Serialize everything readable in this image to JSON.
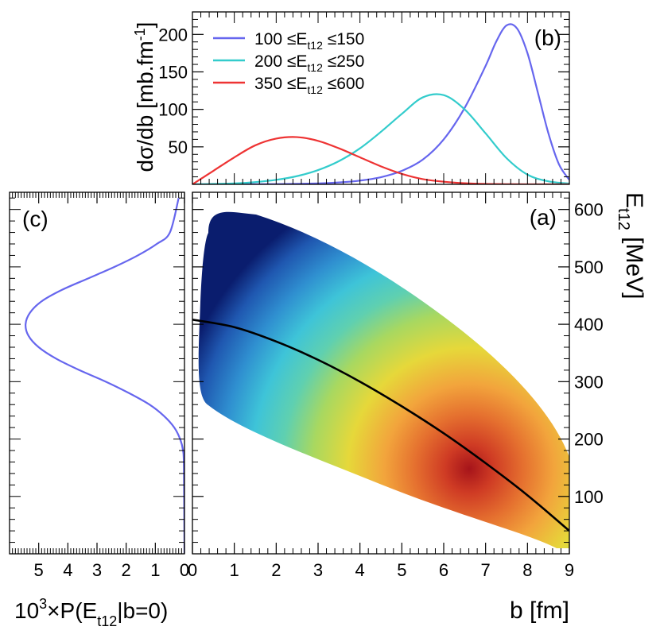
{
  "chart_data": [
    {
      "panel_label": "(b)",
      "type": "line",
      "ylabel": "dσ/db [mb.fm",
      "ylabel_sup": "-1",
      "ylabel_end": "]",
      "xlim": [
        0,
        9
      ],
      "ylim": [
        0,
        230
      ],
      "yticks": [
        "50",
        "100",
        "150",
        "200"
      ],
      "legend_placement": "top-left",
      "series": [
        {
          "name": "100  ≤E",
          "name_sub": "t12",
          "name_end": "  ≤150",
          "color": "#6666ee",
          "x": [
            0,
            1,
            2,
            3,
            3.5,
            4,
            4.5,
            5,
            5.5,
            6,
            6.5,
            7,
            7.25,
            7.5,
            7.75,
            8,
            8.25,
            8.5,
            8.75,
            9
          ],
          "y": [
            0,
            0,
            0.3,
            1.2,
            2.5,
            5,
            9.5,
            18,
            33,
            60,
            102,
            158,
            190,
            212,
            208,
            175,
            122,
            68,
            27,
            6
          ]
        },
        {
          "name": "200  ≤E",
          "name_sub": "t12",
          "name_end": "  ≤250",
          "color": "#33cccc",
          "x": [
            0,
            0.5,
            1,
            1.5,
            2,
            2.5,
            3,
            3.5,
            4,
            4.5,
            5,
            5.5,
            6,
            6.5,
            7,
            7.5,
            8,
            8.5,
            9
          ],
          "y": [
            0,
            0.5,
            1.2,
            3,
            6,
            11,
            19,
            31,
            48,
            70,
            94,
            116,
            119,
            100,
            68,
            35,
            13,
            4,
            1
          ]
        },
        {
          "name": "350  ≤E",
          "name_sub": "t12",
          "name_end": "  ≤600",
          "color": "#ee3333",
          "x": [
            0,
            0.5,
            1,
            1.5,
            2,
            2.5,
            3,
            3.5,
            4,
            4.5,
            5,
            5.5,
            6,
            6.5,
            7,
            7.5,
            8,
            9
          ],
          "y": [
            0,
            18,
            36,
            52,
            61,
            63,
            58,
            48,
            36,
            24,
            14,
            7,
            3.5,
            1.5,
            0.5,
            0.2,
            0,
            0
          ]
        }
      ]
    },
    {
      "panel_label": "(c)",
      "type": "line",
      "xlabel": "10",
      "xlabel_sup": "3",
      "xlabel_mid": "×P(E",
      "xlabel_sub": "t12",
      "xlabel_end": "|b=0)",
      "x_axis_reversed": true,
      "xlim": [
        0,
        6
      ],
      "ylim": [
        0,
        630
      ],
      "xticks": [
        "5",
        "4",
        "3",
        "2",
        "1",
        "0"
      ],
      "series": [
        {
          "color": "#6666ee",
          "x": [
            0,
            0.02,
            0.05,
            0.15,
            0.35,
            0.7,
            1.2,
            1.9,
            2.7,
            3.6,
            4.4,
            5.0,
            5.35,
            5.45,
            5.3,
            4.9,
            4.2,
            3.3,
            2.4,
            1.6,
            0.95,
            0.5,
            0.2
          ],
          "y": [
            0,
            150,
            180,
            200,
            220,
            240,
            260,
            280,
            300,
            320,
            340,
            360,
            380,
            400,
            420,
            440,
            460,
            480,
            500,
            520,
            540,
            560,
            620
          ]
        }
      ]
    },
    {
      "panel_label": "(a)",
      "type": "heatmap",
      "xlabel": "b [fm]",
      "ylabel": "E",
      "ylabel_sub": "t12",
      "ylabel_end": " [MeV]",
      "xlim": [
        0,
        9
      ],
      "ylim": [
        0,
        630
      ],
      "xticks": [
        "0",
        "1",
        "2",
        "3",
        "4",
        "5",
        "6",
        "7",
        "8",
        "9"
      ],
      "yticks": [
        "100",
        "200",
        "300",
        "400",
        "500",
        "600"
      ],
      "colorscale": [
        "#0a1d6e",
        "#1f57b0",
        "#2f8fd0",
        "#3ec4d8",
        "#5fd0b0",
        "#a8d860",
        "#e6d83a",
        "#f2a43c",
        "#e5702f",
        "#cf3b24",
        "#a6141a"
      ],
      "mean_curve": {
        "color": "#000000",
        "b": [
          0,
          1,
          2,
          3,
          4,
          5,
          6,
          7,
          8,
          9
        ],
        "E": [
          408,
          395,
          370,
          338,
          300,
          257,
          210,
          158,
          102,
          40
        ]
      }
    }
  ]
}
